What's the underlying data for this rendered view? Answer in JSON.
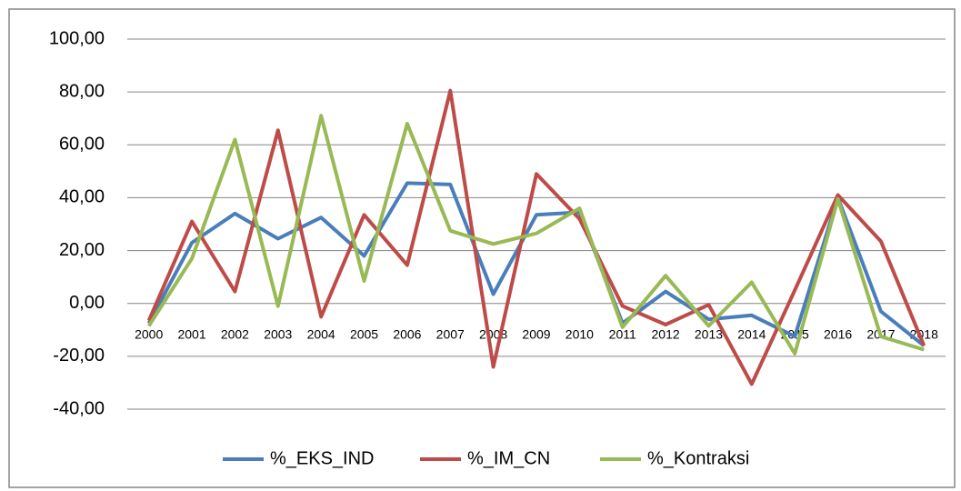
{
  "chart_data": {
    "type": "line",
    "categories": [
      "2000",
      "2001",
      "2002",
      "2003",
      "2004",
      "2005",
      "2006",
      "2007",
      "2008",
      "2009",
      "2010",
      "2011",
      "2012",
      "2013",
      "2014",
      "2015",
      "2016",
      "2017",
      "2018"
    ],
    "series": [
      {
        "name": "%_EKS_IND",
        "color": "#4a7ebb",
        "values": [
          -7.5,
          23,
          34,
          24.5,
          32.5,
          18,
          45.5,
          45,
          3.5,
          33.5,
          34.5,
          -7.5,
          4.5,
          -6,
          -4.5,
          -12.5,
          40,
          -3,
          -16
        ]
      },
      {
        "name": "%_IM_CN",
        "color": "#be4b48",
        "values": [
          -6.5,
          31,
          4.5,
          65.5,
          -5,
          33.5,
          14.5,
          80.5,
          -24,
          49,
          32,
          -1,
          -8,
          -0.5,
          -30.5,
          5,
          41,
          23.5,
          -16
        ]
      },
      {
        "name": "%_Kontraksi",
        "color": "#98b954",
        "values": [
          -8.5,
          17,
          62,
          -1,
          71,
          8.5,
          68,
          27.5,
          22.5,
          26.5,
          36,
          -9,
          10.5,
          -8.5,
          8,
          -19,
          39.5,
          -12.5,
          -17.5
        ]
      }
    ],
    "ylim": [
      -40,
      100
    ],
    "yticks": [
      {
        "value": -40,
        "label": "-40,00"
      },
      {
        "value": -20,
        "label": "-20,00"
      },
      {
        "value": 0,
        "label": "0,00"
      },
      {
        "value": 20,
        "label": "20,00"
      },
      {
        "value": 40,
        "label": "40,00"
      },
      {
        "value": 60,
        "label": "60,00"
      },
      {
        "value": 80,
        "label": "80,00"
      },
      {
        "value": 100,
        "label": "100,00"
      }
    ],
    "grid": true,
    "legend": "bottom"
  }
}
